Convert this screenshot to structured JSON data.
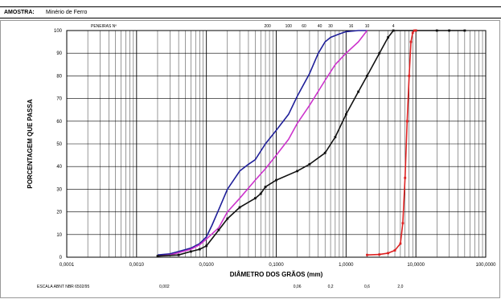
{
  "sample": {
    "label": "AMOSTRA:",
    "value": "Minério de Ferro"
  },
  "chart_data": {
    "type": "line",
    "xscale": "log",
    "xlim": [
      0.0001,
      100
    ],
    "ylim": [
      0,
      100
    ],
    "xlabel": "DIÂMETRO DOS GRÃOS (mm)",
    "ylabel": "PORCENTAGEM QUE PASSA",
    "x_tick_labels": [
      "0,0001",
      "0,0010",
      "0,0100",
      "0,1000",
      "1,0000",
      "10,0000",
      "100,0000"
    ],
    "y_tick_labels": [
      "0",
      "10",
      "20",
      "30",
      "40",
      "50",
      "60",
      "70",
      "80",
      "90",
      "100"
    ],
    "sieves_label": "PENEIRAS Nº",
    "sieves": [
      {
        "label": "200",
        "x": 0.075
      },
      {
        "label": "100",
        "x": 0.15
      },
      {
        "label": "60",
        "x": 0.25
      },
      {
        "label": "40",
        "x": 0.42
      },
      {
        "label": "30",
        "x": 0.6
      },
      {
        "label": "16",
        "x": 1.18
      },
      {
        "label": "10",
        "x": 2.0
      },
      {
        "label": "4",
        "x": 4.76
      }
    ],
    "scale_label": "ESCALA ABNT NBR 6502/95",
    "scale_marks": [
      {
        "label": "0,002",
        "x": 0.0025
      },
      {
        "label": "0,06",
        "x": 0.2
      },
      {
        "label": "0,2",
        "x": 0.6
      },
      {
        "label": "0,6",
        "x": 2.0
      },
      {
        "label": "2,0",
        "x": 6.0
      }
    ],
    "series": [
      {
        "color": "#1f1f99",
        "points": [
          [
            0.002,
            1
          ],
          [
            0.003,
            1.5
          ],
          [
            0.004,
            2.5
          ],
          [
            0.006,
            4
          ],
          [
            0.008,
            6
          ],
          [
            0.01,
            9
          ],
          [
            0.012,
            14
          ],
          [
            0.015,
            21
          ],
          [
            0.02,
            30
          ],
          [
            0.03,
            38
          ],
          [
            0.04,
            41
          ],
          [
            0.05,
            43
          ],
          [
            0.07,
            50
          ],
          [
            0.1,
            56
          ],
          [
            0.15,
            63
          ],
          [
            0.2,
            71
          ],
          [
            0.3,
            81
          ],
          [
            0.4,
            90
          ],
          [
            0.5,
            95
          ],
          [
            0.6,
            97
          ],
          [
            0.8,
            98.5
          ],
          [
            1.0,
            99.5
          ],
          [
            1.5,
            100
          ],
          [
            2.0,
            100
          ]
        ]
      },
      {
        "color": "#cc33cc",
        "points": [
          [
            0.002,
            0.5
          ],
          [
            0.003,
            1
          ],
          [
            0.004,
            2
          ],
          [
            0.006,
            3.5
          ],
          [
            0.008,
            5.5
          ],
          [
            0.01,
            8
          ],
          [
            0.015,
            13
          ],
          [
            0.02,
            20
          ],
          [
            0.03,
            26
          ],
          [
            0.05,
            34
          ],
          [
            0.07,
            39
          ],
          [
            0.1,
            45
          ],
          [
            0.15,
            52
          ],
          [
            0.2,
            59
          ],
          [
            0.3,
            67
          ],
          [
            0.5,
            78
          ],
          [
            0.7,
            85
          ],
          [
            1.0,
            90
          ],
          [
            1.5,
            95
          ],
          [
            2.0,
            100
          ]
        ]
      },
      {
        "color": "#111111",
        "points": [
          [
            0.002,
            0.5
          ],
          [
            0.004,
            1
          ],
          [
            0.006,
            2.5
          ],
          [
            0.008,
            3.5
          ],
          [
            0.01,
            5
          ],
          [
            0.015,
            12
          ],
          [
            0.02,
            17
          ],
          [
            0.03,
            22
          ],
          [
            0.05,
            26
          ],
          [
            0.06,
            28
          ],
          [
            0.07,
            31
          ],
          [
            0.1,
            34
          ],
          [
            0.2,
            38
          ],
          [
            0.3,
            41
          ],
          [
            0.5,
            46
          ],
          [
            0.7,
            53
          ],
          [
            1.0,
            63
          ],
          [
            1.5,
            73
          ],
          [
            2.0,
            80
          ],
          [
            3.0,
            90
          ],
          [
            4.0,
            97
          ],
          [
            4.76,
            100
          ],
          [
            10,
            100
          ],
          [
            20,
            100
          ],
          [
            30,
            100
          ],
          [
            50,
            100
          ]
        ]
      },
      {
        "color": "#dd2222",
        "points": [
          [
            2.0,
            1
          ],
          [
            3.0,
            1.2
          ],
          [
            4.0,
            1.8
          ],
          [
            5.0,
            3
          ],
          [
            6.0,
            6
          ],
          [
            6.5,
            15
          ],
          [
            7.0,
            35
          ],
          [
            7.5,
            60
          ],
          [
            8.0,
            80
          ],
          [
            8.5,
            95
          ],
          [
            9.0,
            99
          ],
          [
            9.5,
            100
          ],
          [
            10,
            100
          ]
        ]
      }
    ]
  }
}
